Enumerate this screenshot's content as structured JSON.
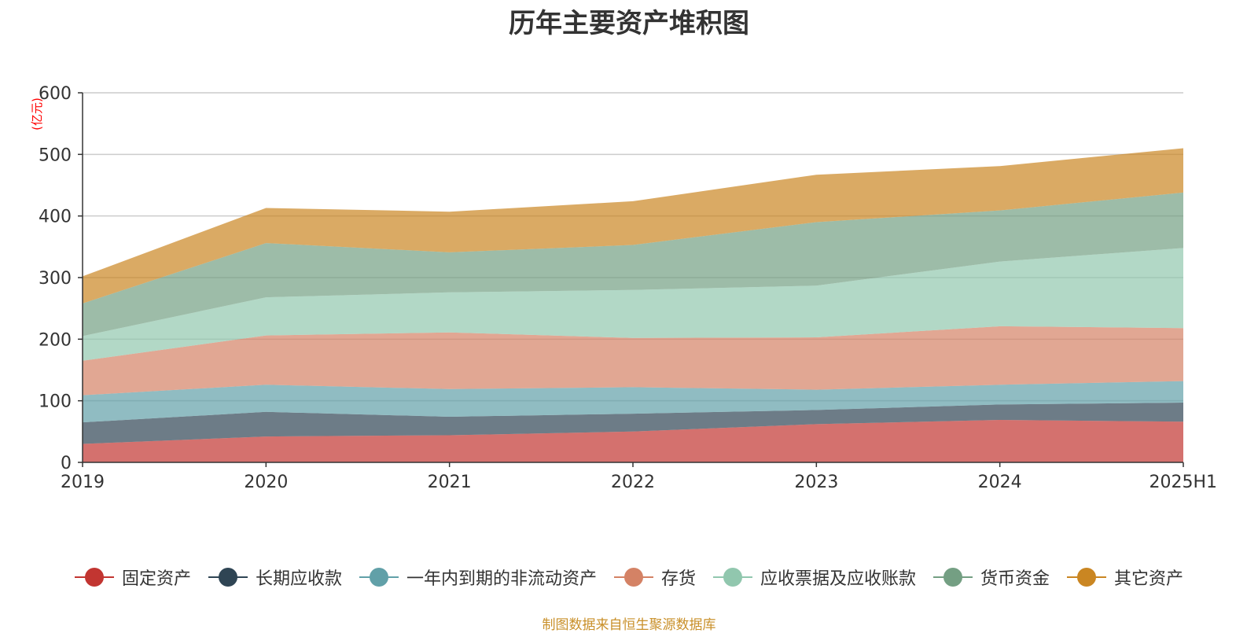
{
  "title": "历年主要资产堆积图",
  "unit_label": "(亿元)",
  "source": "制图数据来自恒生聚源数据库",
  "chart_data": {
    "type": "area",
    "stacked": true,
    "title": "历年主要资产堆积图",
    "ylabel": "(亿元)",
    "ylim": [
      0,
      600
    ],
    "yticks": [
      0,
      100,
      200,
      300,
      400,
      500,
      600
    ],
    "categories": [
      "2019",
      "2020",
      "2021",
      "2022",
      "2023",
      "2024",
      "2025H1"
    ],
    "grid": true,
    "legend_position": "bottom",
    "series": [
      {
        "name": "固定资产",
        "color": "#c23531",
        "values": [
          30,
          42,
          44,
          50,
          62,
          69,
          66
        ]
      },
      {
        "name": "长期应收款",
        "color": "#2f4554",
        "values": [
          35,
          40,
          30,
          29,
          23,
          25,
          31
        ]
      },
      {
        "name": "一年内到期的非流动资产",
        "color": "#61a0a8",
        "values": [
          44,
          44,
          45,
          43,
          33,
          32,
          35
        ]
      },
      {
        "name": "存货",
        "color": "#d48265",
        "values": [
          56,
          80,
          92,
          80,
          85,
          95,
          86
        ]
      },
      {
        "name": "应收票据及应收账款",
        "color": "#91c7ae",
        "values": [
          40,
          62,
          65,
          78,
          84,
          105,
          130
        ]
      },
      {
        "name": "货币资金",
        "color": "#749f83",
        "values": [
          53,
          88,
          65,
          73,
          103,
          83,
          90
        ]
      },
      {
        "name": "其它资产",
        "color": "#ca8622",
        "values": [
          44,
          57,
          66,
          71,
          77,
          72,
          72
        ]
      }
    ]
  }
}
